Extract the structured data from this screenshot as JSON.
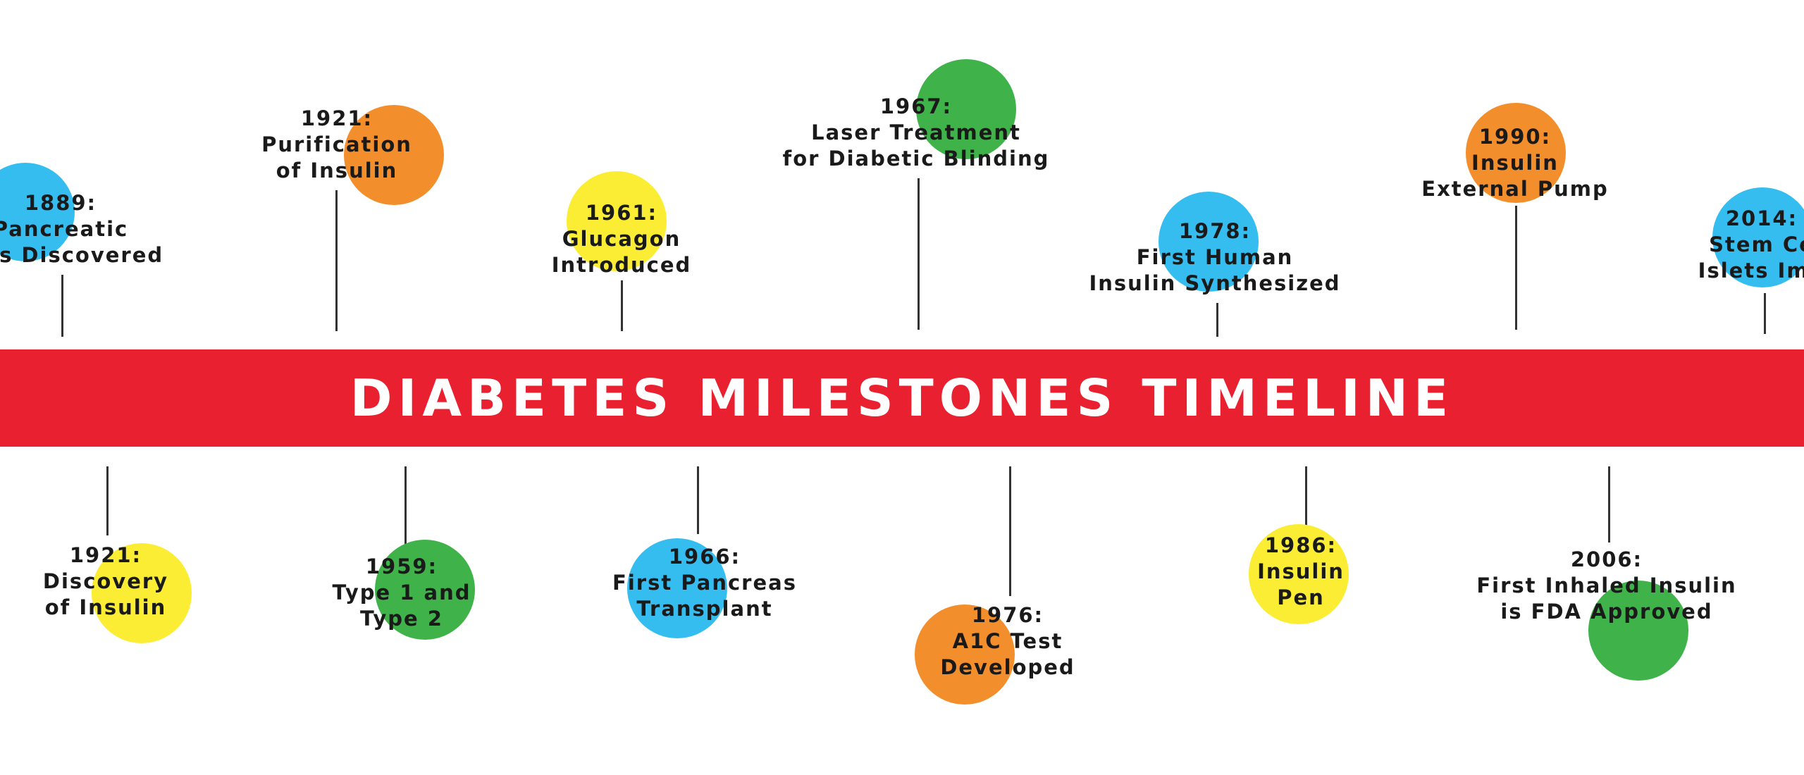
{
  "title": "DIABETES MILESTONES TIMELINE",
  "colors": {
    "banner": "#e8202f",
    "blue": "#36bdf0",
    "orange": "#f28f2c",
    "yellow": "#fbed34",
    "green": "#3fb24a"
  },
  "milestones": {
    "m1889": {
      "year": "1889:",
      "line1": "Pancreatic",
      "line2": "etes Discovered",
      "color": "blue"
    },
    "m1921p": {
      "year": "1921:",
      "line1": "Purification",
      "line2": "of Insulin",
      "color": "orange"
    },
    "m1961": {
      "year": "1961:",
      "line1": "Glucagon",
      "line2": "Introduced",
      "color": "yellow"
    },
    "m1967": {
      "year": "1967:",
      "line1": "Laser Treatment",
      "line2": "for Diabetic Blinding",
      "color": "green"
    },
    "m1978": {
      "year": "1978:",
      "line1": "First Human",
      "line2": "Insulin Synthesized",
      "color": "blue"
    },
    "m1990": {
      "year": "1990:",
      "line1": "Insulin",
      "line2": "External Pump",
      "color": "orange"
    },
    "m2014": {
      "year": "2014:",
      "line1": "Stem Ce",
      "line2": "Islets Imp",
      "color": "blue"
    },
    "m1921d": {
      "year": "1921:",
      "line1": "Discovery",
      "line2": "of Insulin",
      "color": "yellow"
    },
    "m1959": {
      "year": "1959:",
      "line1": "Type 1 and",
      "line2": "Type 2",
      "color": "green"
    },
    "m1966": {
      "year": "1966:",
      "line1": "First Pancreas",
      "line2": "Transplant",
      "color": "blue"
    },
    "m1976": {
      "year": "1976:",
      "line1": "A1C Test",
      "line2": "Developed",
      "color": "orange"
    },
    "m1986": {
      "year": "1986:",
      "line1": "Insulin",
      "line2": "Pen",
      "color": "yellow"
    },
    "m2006": {
      "year": "2006:",
      "line1": "First Inhaled Insulin",
      "line2": "is FDA Approved",
      "color": "green"
    }
  }
}
